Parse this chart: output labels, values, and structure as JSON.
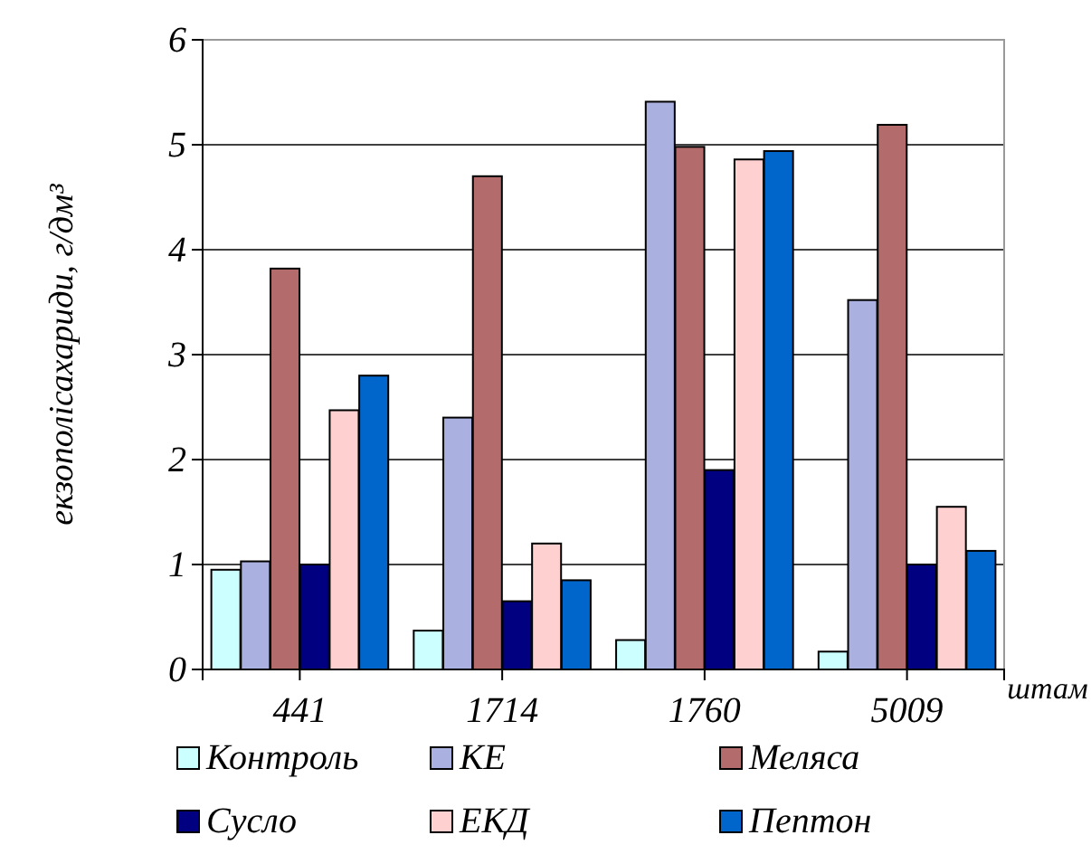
{
  "chart_data": {
    "type": "bar",
    "xlabel": "штам",
    "ylabel": "екзополісахариди, г/дм³",
    "categories": [
      "441",
      "1714",
      "1760",
      "5009"
    ],
    "series": [
      {
        "name": "Контроль",
        "color": "#ccffff",
        "values": [
          0.95,
          0.37,
          0.28,
          0.17
        ]
      },
      {
        "name": "КЕ",
        "color": "#aab0e0",
        "values": [
          1.03,
          2.4,
          5.41,
          3.52
        ]
      },
      {
        "name": "Меляса",
        "color": "#b36b6b",
        "values": [
          3.82,
          4.7,
          4.98,
          5.19
        ]
      },
      {
        "name": "Сусло",
        "color": "#000080",
        "values": [
          1.0,
          0.65,
          1.9,
          1.0
        ]
      },
      {
        "name": "ЕКД",
        "color": "#ffd0d0",
        "values": [
          2.47,
          1.2,
          4.86,
          1.55
        ]
      },
      {
        "name": "Пептон",
        "color": "#0066cc",
        "values": [
          2.8,
          0.85,
          4.94,
          1.13
        ]
      }
    ],
    "ylim": [
      0,
      6
    ],
    "yticks": [
      0,
      1,
      2,
      3,
      4,
      5,
      6
    ],
    "grid": "y",
    "legend": "bottom"
  }
}
